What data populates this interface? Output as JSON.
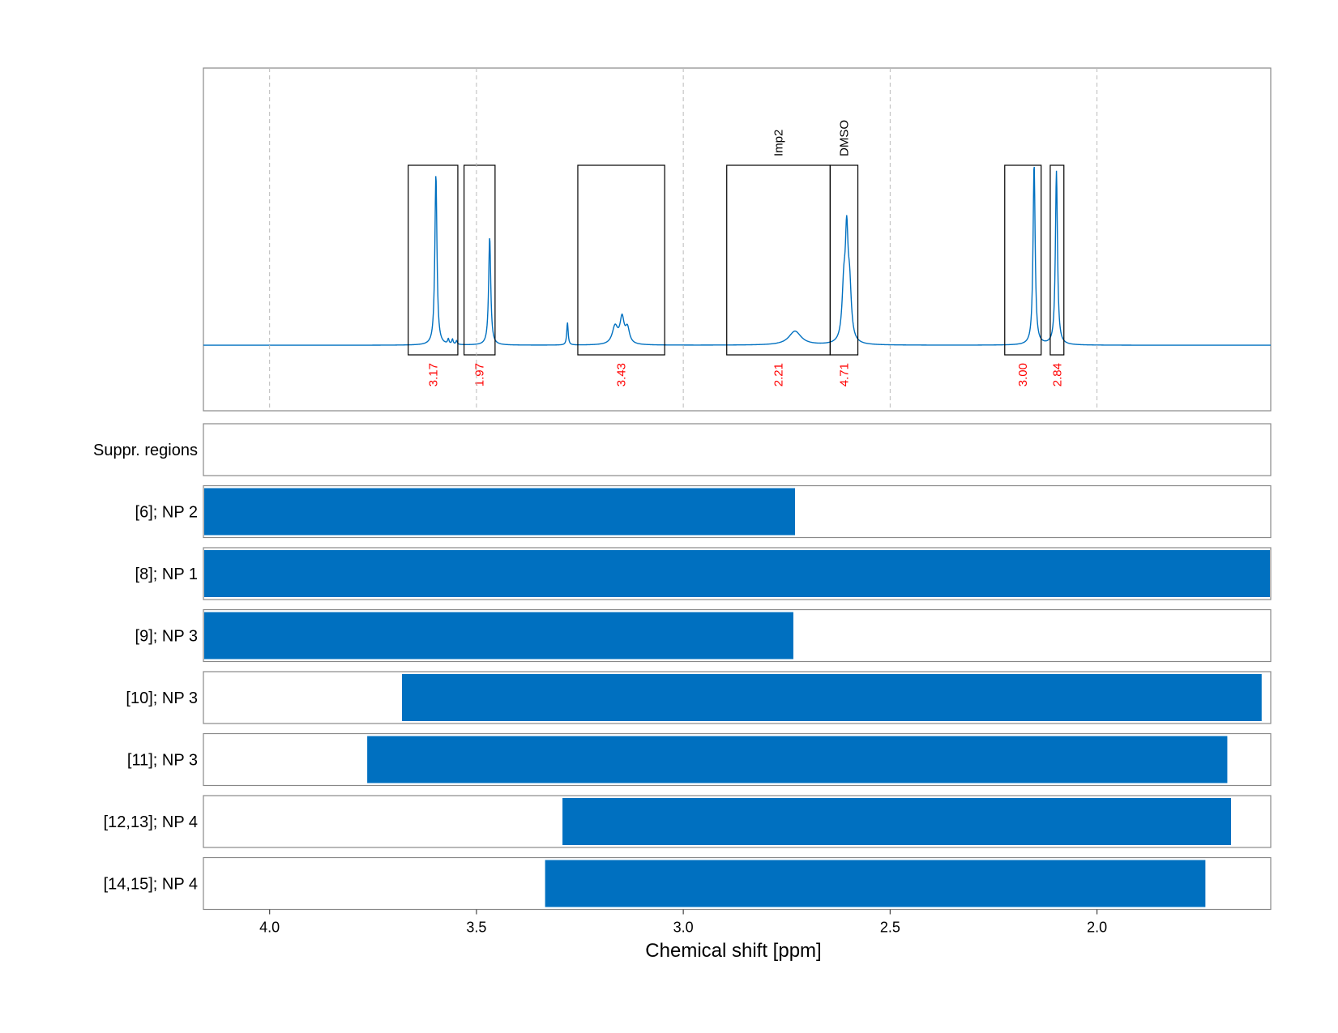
{
  "chart_data": {
    "type": "line",
    "xlabel": "Chemical shift [ppm]",
    "xlim": [
      4.16,
      1.58
    ],
    "x_reversed": true,
    "x_ticks": [
      4.0,
      3.5,
      3.0,
      2.5,
      2.0
    ],
    "x_tick_labels": [
      "4.0",
      "3.5",
      "3.0",
      "2.5",
      "2.0"
    ],
    "grid": true,
    "colors": {
      "spectrum": "#0070c0",
      "bars": "#0070c0",
      "integrals": "#ff0000",
      "boxes": "#000000"
    },
    "spectrum": {
      "baseline": 0,
      "ylim": [
        -0.26,
        1.1
      ],
      "peaks": [
        {
          "x": 3.598,
          "h": 0.68,
          "w": 0.003
        },
        {
          "x": 3.568,
          "h": 0.02,
          "w": 0.002
        },
        {
          "x": 3.558,
          "h": 0.02,
          "w": 0.002
        },
        {
          "x": 3.548,
          "h": 0.015,
          "w": 0.002
        },
        {
          "x": 3.468,
          "h": 0.43,
          "w": 0.003
        },
        {
          "x": 3.28,
          "h": 0.09,
          "w": 0.002
        },
        {
          "x": 3.165,
          "h": 0.07,
          "w": 0.008
        },
        {
          "x": 3.148,
          "h": 0.1,
          "w": 0.006
        },
        {
          "x": 3.135,
          "h": 0.06,
          "w": 0.006
        },
        {
          "x": 2.73,
          "h": 0.055,
          "w": 0.018
        },
        {
          "x": 2.605,
          "h": 0.38,
          "w": 0.004
        },
        {
          "x": 2.612,
          "h": 0.2,
          "w": 0.005
        },
        {
          "x": 2.598,
          "h": 0.2,
          "w": 0.005
        },
        {
          "x": 2.152,
          "h": 0.72,
          "w": 0.003
        },
        {
          "x": 2.098,
          "h": 0.69,
          "w": 0.003
        }
      ]
    },
    "regions": [
      {
        "x_start": 3.665,
        "x_end": 3.545,
        "integral": "3.17",
        "label": ""
      },
      {
        "x_start": 3.53,
        "x_end": 3.455,
        "integral": "1.97",
        "label": ""
      },
      {
        "x_start": 3.255,
        "x_end": 3.045,
        "integral": "3.43",
        "label": ""
      },
      {
        "x_start": 2.895,
        "x_end": 2.645,
        "integral": "2.21",
        "label": "Imp2"
      },
      {
        "x_start": 2.645,
        "x_end": 2.578,
        "integral": "4.71",
        "label": "DMSO"
      },
      {
        "x_start": 2.223,
        "x_end": 2.135,
        "integral": "3.00",
        "label": ""
      },
      {
        "x_start": 2.113,
        "x_end": 2.08,
        "integral": "2.84",
        "label": ""
      }
    ],
    "rows": [
      {
        "label": "Suppr. regions",
        "start": null,
        "end": null
      },
      {
        "label": "[6]; NP 2",
        "start": 4.16,
        "end": 2.728
      },
      {
        "label": "[8]; NP 1",
        "start": 4.16,
        "end": 1.58
      },
      {
        "label": "[9]; NP 3",
        "start": 4.16,
        "end": 2.732
      },
      {
        "label": "[10]; NP 3",
        "start": 3.682,
        "end": 1.6
      },
      {
        "label": "[11]; NP 3",
        "start": 3.766,
        "end": 1.683
      },
      {
        "label": "[12,13]; NP 4",
        "start": 3.294,
        "end": 1.674
      },
      {
        "label": "[14,15]; NP 4",
        "start": 3.336,
        "end": 1.736
      }
    ]
  }
}
